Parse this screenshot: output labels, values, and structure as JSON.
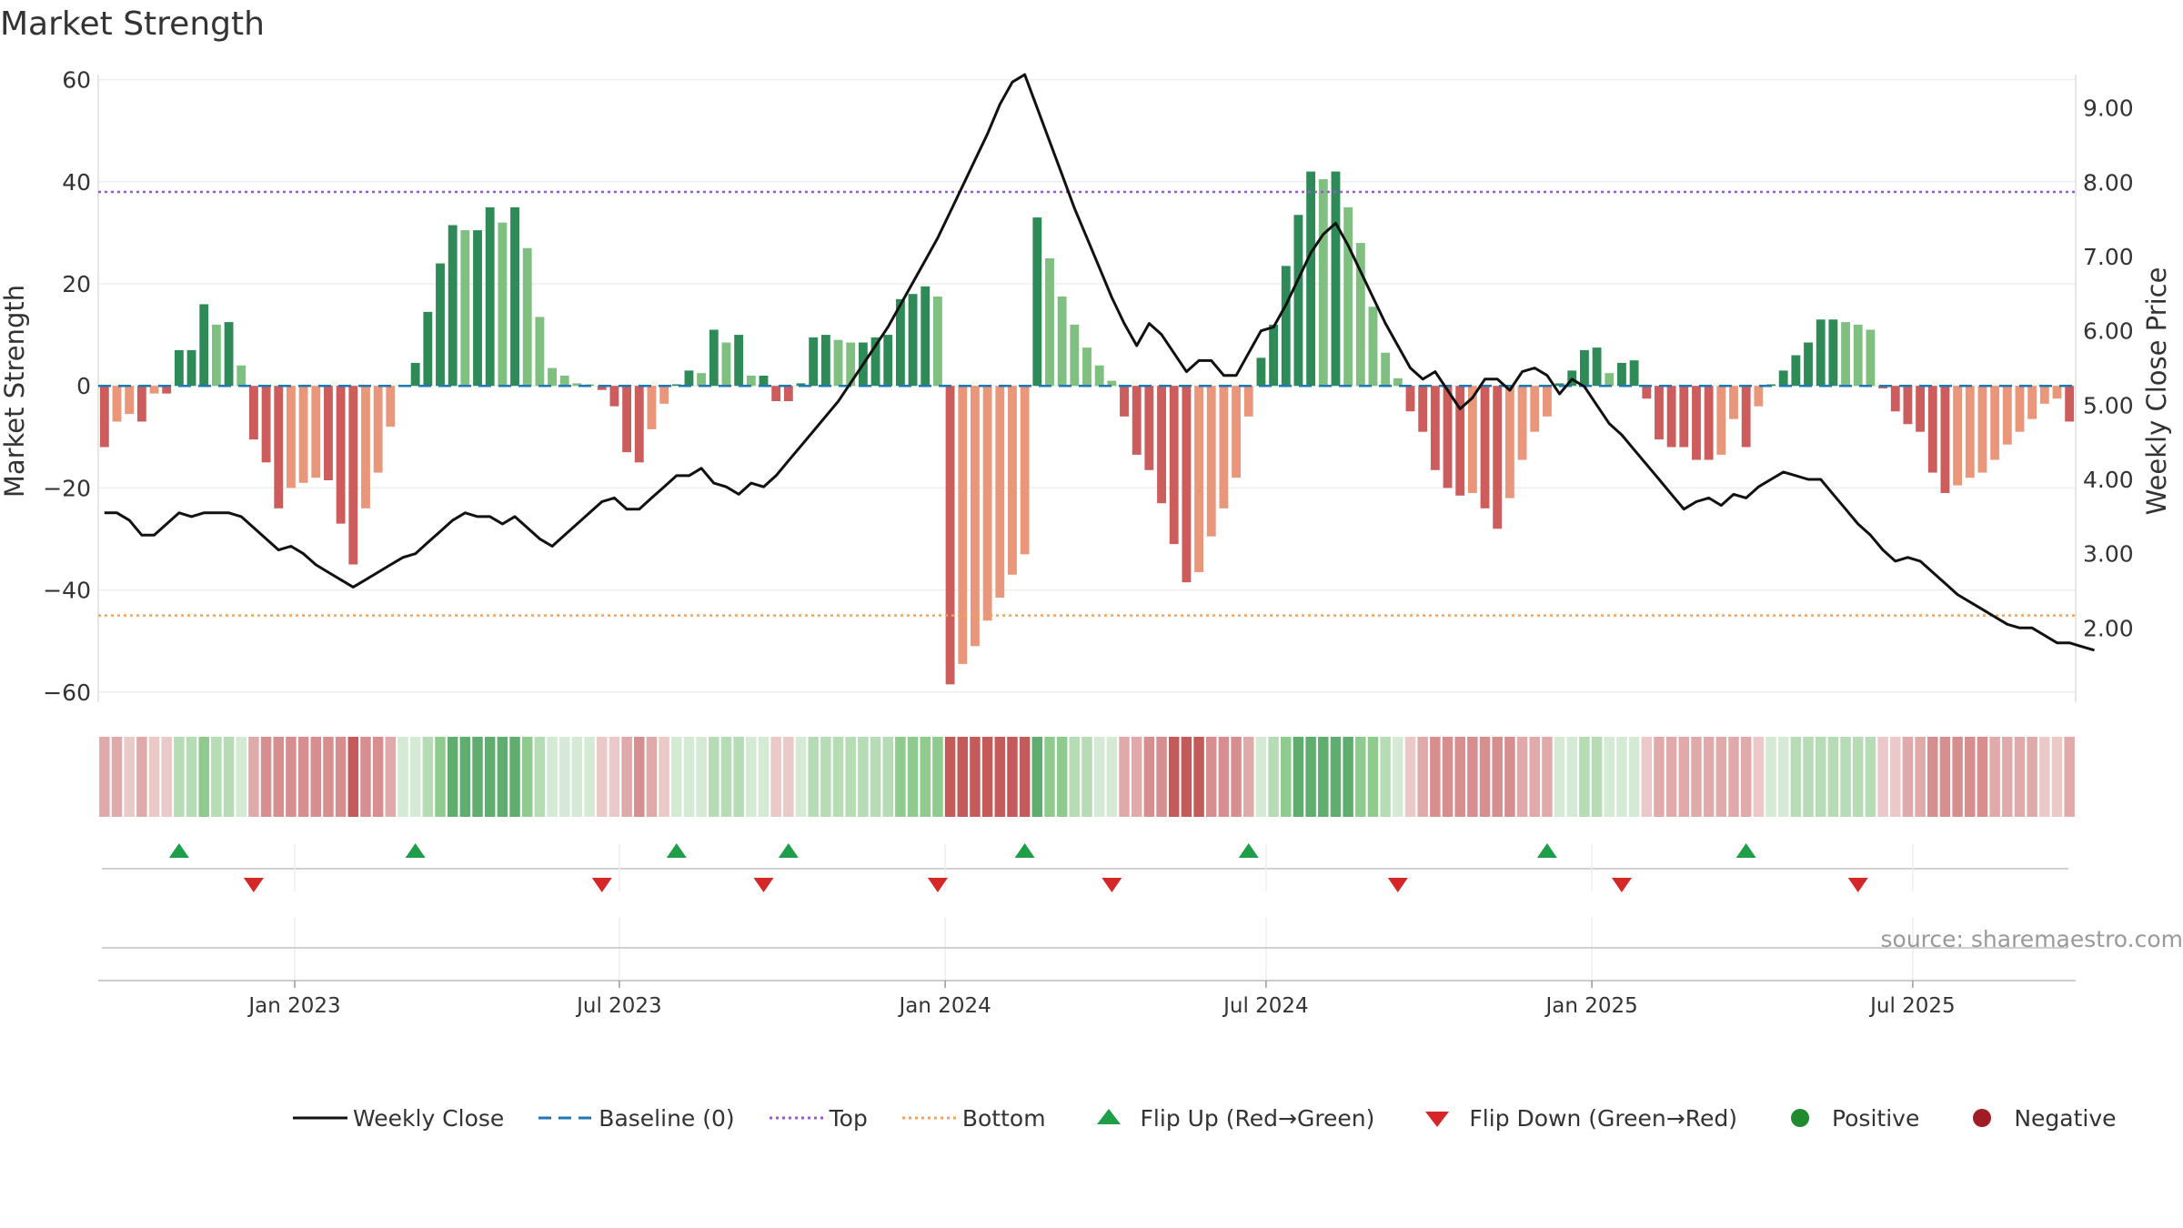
{
  "title": "Market Strength",
  "source": "source: sharemaestro.com",
  "chart_data": {
    "type": "bar",
    "ylabel_left": "Market Strength",
    "ylabel_right": "Weekly Close Price",
    "ylim_left": [
      -62,
      61
    ],
    "ylim_right": [
      1.0,
      9.45
    ],
    "left_ticks": [
      "60",
      "40",
      "20",
      "0",
      "−20",
      "−40",
      "−60"
    ],
    "left_tick_values": [
      60,
      40,
      20,
      0,
      -20,
      -40,
      -60
    ],
    "right_ticks": [
      "9.00",
      "8.00",
      "7.00",
      "6.00",
      "5.00",
      "4.00",
      "3.00",
      "2.00"
    ],
    "right_tick_values": [
      9,
      8,
      7,
      6,
      5,
      4,
      3,
      2
    ],
    "x_ticks": [
      "Jan 2023",
      "Jul 2023",
      "Jan 2024",
      "Jul 2024",
      "Jan 2025",
      "Jul 2025"
    ],
    "x_tick_weeks": [
      15.3,
      41.4,
      67.6,
      93.4,
      119.6,
      145.4
    ],
    "top_line": 38,
    "bottom_line": -45,
    "strength": [
      -12,
      -7,
      -5.5,
      -7,
      -1.5,
      -1.5,
      7,
      7,
      16,
      12,
      12.5,
      4,
      -10.5,
      -15,
      -24,
      -20,
      -19,
      -18,
      -18.5,
      -27,
      -35,
      -24,
      -17,
      -8,
      0,
      4.5,
      14.5,
      24,
      31.5,
      30.5,
      30.5,
      35,
      32,
      35,
      27,
      13.5,
      3.5,
      2,
      0.5,
      0.3,
      -0.8,
      -4,
      -13,
      -15,
      -8.5,
      -3.5,
      0.3,
      3,
      2.5,
      11,
      8.5,
      10,
      2,
      2,
      -3,
      -3,
      0.5,
      9.5,
      10,
      9,
      8.5,
      8.5,
      9.5,
      10,
      17,
      18,
      19.5,
      17.5,
      -58.5,
      -54.5,
      -51,
      -46,
      -41.5,
      -37,
      -33,
      33,
      25,
      17.5,
      12,
      7.5,
      4,
      1,
      -6,
      -13.5,
      -16.5,
      -23,
      -31,
      -38.5,
      -36.5,
      -29.5,
      -24,
      -18,
      -6,
      5.5,
      12,
      23.5,
      33.5,
      42,
      40.5,
      42,
      35,
      28,
      15.5,
      6.5,
      1.5,
      -5,
      -9,
      -16.5,
      -20,
      -21.5,
      -21,
      -24,
      -28,
      -22,
      -14.5,
      -9,
      -6,
      0.5,
      3,
      7,
      7.5,
      2.5,
      4.5,
      5,
      -2.5,
      -10.5,
      -12,
      -12,
      -14.5,
      -14.5,
      -13.5,
      -6.5,
      -12,
      -4,
      0.3,
      3,
      6,
      8.5,
      13,
      13,
      12.5,
      12,
      11,
      -0.5,
      -5,
      -7.5,
      -9,
      -17,
      -21,
      -19.5,
      -18,
      -17,
      -14.5,
      -11.5,
      -9,
      -6.5,
      -3.5,
      -2.5,
      -7
    ],
    "flip_up_weeks": [
      6,
      25,
      46,
      55,
      74,
      92,
      116,
      132
    ],
    "flip_down_weeks": [
      12,
      40,
      53,
      67,
      81,
      104,
      122,
      141
    ],
    "weekly_close": [
      3.55,
      3.55,
      3.45,
      3.25,
      3.25,
      3.4,
      3.55,
      3.5,
      3.55,
      3.55,
      3.55,
      3.5,
      3.35,
      3.2,
      3.05,
      3.1,
      3.0,
      2.85,
      2.75,
      2.65,
      2.55,
      2.65,
      2.75,
      2.85,
      2.95,
      3.0,
      3.15,
      3.3,
      3.45,
      3.55,
      3.5,
      3.5,
      3.4,
      3.5,
      3.35,
      3.2,
      3.1,
      3.25,
      3.4,
      3.55,
      3.7,
      3.75,
      3.6,
      3.6,
      3.75,
      3.9,
      4.05,
      4.05,
      4.15,
      3.95,
      3.9,
      3.8,
      3.95,
      3.9,
      4.05,
      4.25,
      4.45,
      4.65,
      4.85,
      5.05,
      5.3,
      5.55,
      5.8,
      6.05,
      6.35,
      6.65,
      6.95,
      7.25,
      7.6,
      7.95,
      8.3,
      8.65,
      9.05,
      9.35,
      9.45,
      9.0,
      8.55,
      8.1,
      7.65,
      7.25,
      6.85,
      6.45,
      6.1,
      5.8,
      6.1,
      5.95,
      5.7,
      5.45,
      5.6,
      5.6,
      5.4,
      5.4,
      5.7,
      6.0,
      6.05,
      6.35,
      6.7,
      7.05,
      7.3,
      7.45,
      7.15,
      6.8,
      6.45,
      6.1,
      5.8,
      5.5,
      5.35,
      5.45,
      5.2,
      4.95,
      5.1,
      5.35,
      5.35,
      5.2,
      5.45,
      5.5,
      5.4,
      5.15,
      5.35,
      5.25,
      5.0,
      4.75,
      4.6,
      4.4,
      4.2,
      4.0,
      3.8,
      3.6,
      3.7,
      3.75,
      3.65,
      3.8,
      3.75,
      3.9,
      4.0,
      4.1,
      4.05,
      4.0,
      4.0,
      3.8,
      3.6,
      3.4,
      3.25,
      3.05,
      2.9,
      2.95,
      2.9,
      2.75,
      2.6,
      2.45,
      2.35,
      2.25,
      2.15,
      2.05,
      2.0,
      2.0,
      1.9,
      1.8,
      1.8,
      1.75,
      1.7
    ]
  },
  "legend": [
    {
      "label": "Weekly Close",
      "symbol": "line",
      "color": "#111111"
    },
    {
      "label": "Baseline (0)",
      "symbol": "dash",
      "color": "#1f77b4"
    },
    {
      "label": "Top",
      "symbol": "dot",
      "color": "#9b59d0"
    },
    {
      "label": "Bottom",
      "symbol": "dot",
      "color": "#f0a35e"
    },
    {
      "label": "Flip Up (Red→Green)",
      "symbol": "tri-up",
      "color": "#1e9e48"
    },
    {
      "label": "Flip Down (Green→Red)",
      "symbol": "tri-down",
      "color": "#d62728"
    },
    {
      "label": "Positive",
      "symbol": "circle",
      "color": "#1f8a2e"
    },
    {
      "label": "Negative",
      "symbol": "circle",
      "color": "#a11d25"
    }
  ],
  "colors": {
    "pos_strong": "#2e8b57",
    "pos_weak": "#7fbf7f",
    "neg_strong": "#cd5c5c",
    "neg_weak": "#e9967a",
    "baseline": "#1f77b4",
    "top": "#9b59d0",
    "bottom": "#f0a35e",
    "close": "#111111",
    "source": "#999999"
  }
}
